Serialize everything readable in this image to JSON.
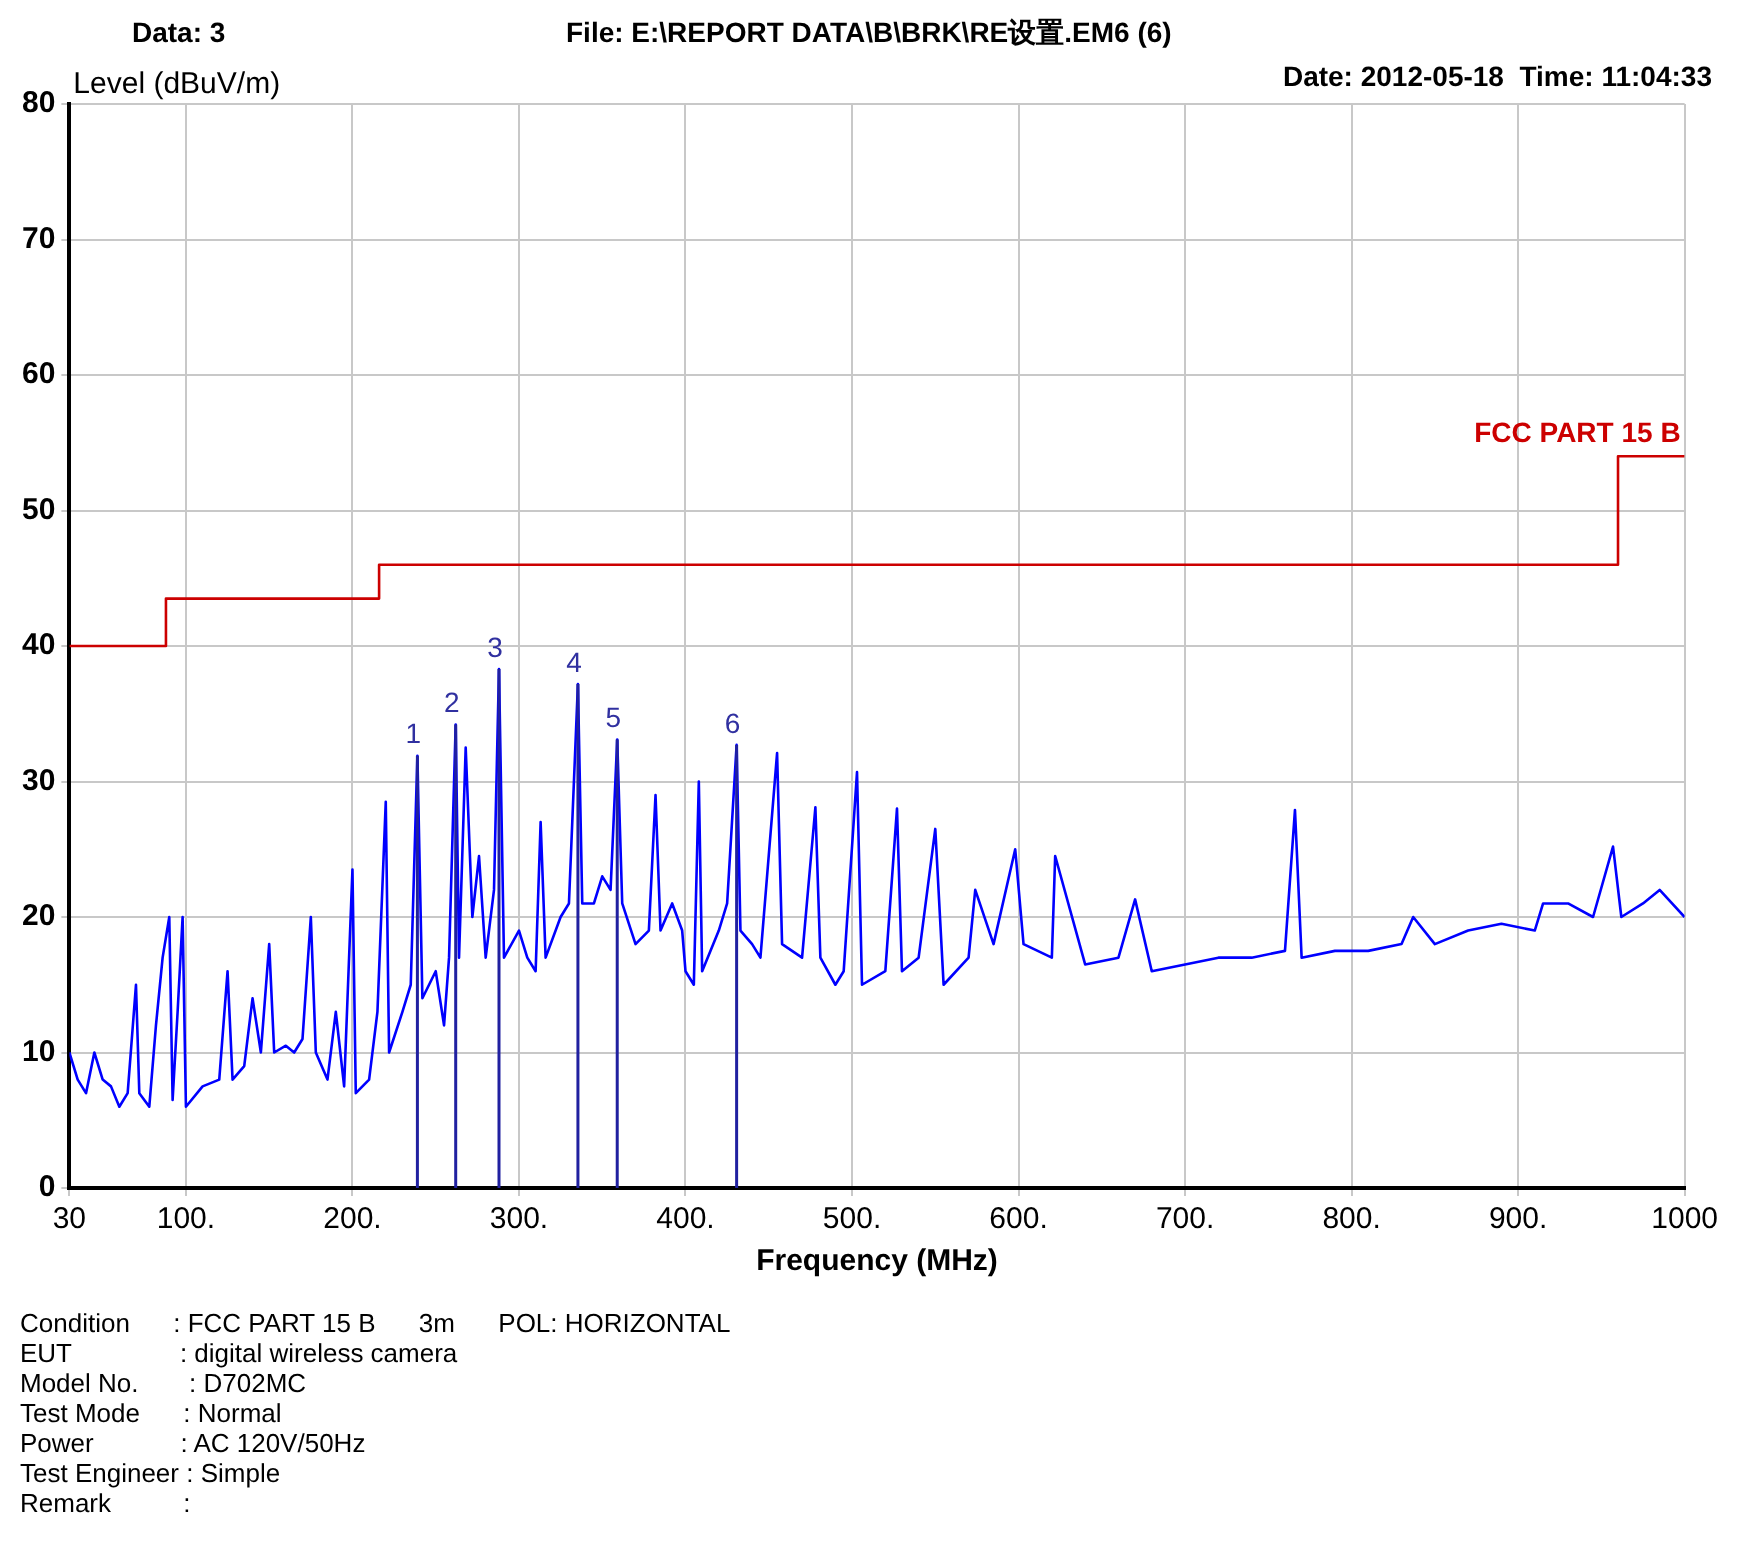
{
  "chart_data": {
    "type": "line",
    "xlabel": "Frequency (MHz)",
    "ylabel": "Level (dBuV/m)",
    "xlim": [
      30,
      1000
    ],
    "ylim": [
      0,
      80
    ],
    "xticks": [
      30,
      {
        "value": 100,
        "label": "100."
      },
      {
        "value": 200,
        "label": "200."
      },
      {
        "value": 300,
        "label": "300."
      },
      {
        "value": 400,
        "label": "400."
      },
      {
        "value": 500,
        "label": "500."
      },
      {
        "value": 600,
        "label": "600."
      },
      {
        "value": 700,
        "label": "700."
      },
      {
        "value": 800,
        "label": "800."
      },
      {
        "value": 900,
        "label": "900."
      },
      1000
    ],
    "yticks": [
      0,
      10,
      20,
      30,
      40,
      50,
      60,
      70,
      80
    ],
    "grid": true,
    "legend": false,
    "marker": "none",
    "line_style": "solid",
    "series": [
      {
        "color": "#0000ff",
        "x": [
          30,
          35,
          40,
          45,
          50,
          55,
          60,
          65,
          70,
          72,
          78,
          82,
          86,
          90,
          92,
          95,
          98,
          100,
          110,
          120,
          125,
          128,
          135,
          140,
          145,
          150,
          153,
          160,
          165,
          170,
          175,
          178,
          185,
          190,
          195,
          200,
          202,
          210,
          215,
          220,
          222,
          230,
          235,
          239,
          242,
          250,
          255,
          258,
          262,
          264,
          268,
          272,
          276,
          280,
          285,
          288,
          291,
          300,
          305,
          310,
          313,
          316,
          325,
          330,
          335.4,
          338,
          345,
          350,
          355,
          359,
          362,
          370,
          378,
          382,
          385,
          392,
          398,
          400,
          405,
          408,
          410,
          420,
          425,
          430.7,
          433,
          440,
          445,
          455,
          458,
          470,
          478,
          481,
          490,
          495,
          503,
          506,
          520,
          527,
          530,
          540,
          550,
          555,
          570,
          574,
          585,
          598,
          603,
          620,
          622,
          640,
          660,
          670,
          680,
          700,
          720,
          740,
          760,
          766,
          770,
          790,
          810,
          830,
          837,
          850,
          870,
          890,
          910,
          915,
          930,
          945,
          957,
          962,
          975,
          985,
          1000
        ],
        "values": [
          10,
          8,
          7,
          10,
          8,
          7.5,
          6,
          7,
          15,
          7,
          6,
          12,
          17,
          20,
          6.5,
          13,
          20,
          6,
          7.5,
          8,
          16,
          8,
          9,
          14,
          10,
          18,
          10,
          10.5,
          10,
          11,
          20,
          10,
          8,
          13,
          7.5,
          23.5,
          7,
          8,
          13,
          28.5,
          10,
          13,
          15,
          31.9,
          14,
          16,
          12,
          17,
          34.2,
          17,
          32.5,
          20,
          24.5,
          17,
          22,
          38.3,
          17,
          19,
          17,
          16,
          27,
          17,
          20,
          21,
          37.2,
          21,
          21,
          23,
          22,
          33.1,
          21,
          18,
          19,
          29,
          19,
          21,
          19,
          16,
          15,
          30,
          16,
          19,
          21,
          32.7,
          19,
          18,
          17,
          32.1,
          18,
          17,
          28.1,
          17,
          15,
          16,
          30.7,
          15,
          16,
          28,
          16,
          17,
          26.5,
          15,
          17,
          22,
          18,
          25,
          18,
          17,
          24.5,
          16.5,
          17,
          21.3,
          16,
          16.5,
          17,
          17,
          17.5,
          27.9,
          17,
          17.5,
          17.5,
          18,
          20,
          18,
          19,
          19.5,
          19,
          21,
          21,
          20,
          25.2,
          20,
          21,
          22,
          20
        ]
      },
      {
        "name": "FCC PART 15 B",
        "type": "step",
        "color": "#cc0000",
        "x": [
          30,
          88,
          216,
          960,
          1000
        ],
        "values": [
          40,
          43.5,
          46,
          54,
          54
        ]
      }
    ],
    "annotations": [
      "Data: 3",
      "File: E:\\REPORT DATA\\B\\BRK\\RE设置.EM6  (6)",
      "Date: 2012-05-18  Time: 11:04:33",
      {
        "text": "1",
        "x": 239,
        "y": 31.9
      },
      {
        "text": "2",
        "x": 262,
        "y": 34.2
      },
      {
        "text": "3",
        "x": 288,
        "y": 38.3
      },
      {
        "text": "4",
        "x": 335.4,
        "y": 37.2
      },
      {
        "text": "5",
        "x": 359,
        "y": 33.1
      },
      {
        "text": "6",
        "x": 430.7,
        "y": 32.7
      },
      "Condition      : FCC PART 15 B      3m      POL: HORIZONTAL",
      "EUT               : digital wireless camera",
      "Model No.       : D702MC",
      "Test Mode      : Normal",
      "Power            : AC 120V/50Hz",
      "Test Engineer : Simple",
      "Remark          :"
    ]
  }
}
